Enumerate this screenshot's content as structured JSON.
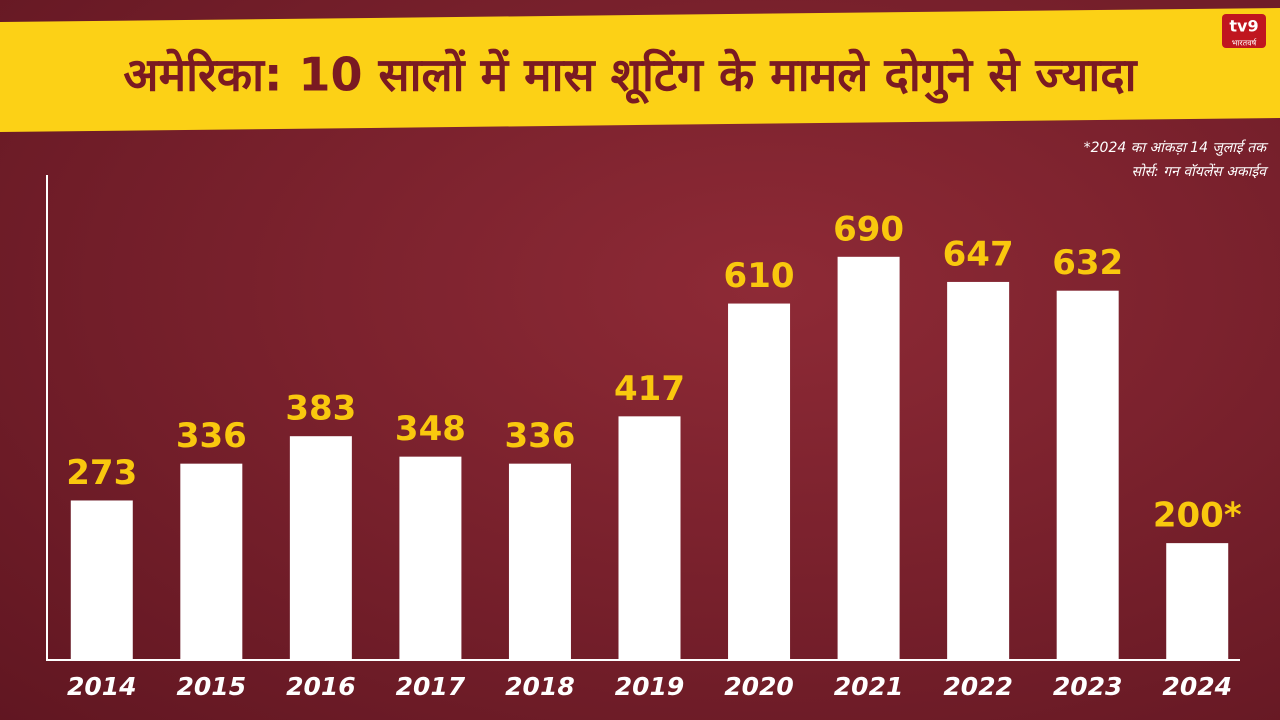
{
  "chart_data": {
    "type": "bar",
    "title": "अमेरिका: 10 सालों में मास शूटिंग के मामले दोगुने से ज्यादा",
    "notes": [
      "*2024 का आंकड़ा 14 जुलाई तक",
      "सोर्स: गन  वॉयलेंस अकाईव"
    ],
    "logo": [
      "tv9",
      "भारतवर्ष"
    ],
    "categories": [
      "2014",
      "2015",
      "2016",
      "2017",
      "2018",
      "2019",
      "2020",
      "2021",
      "2022",
      "2023",
      "2024"
    ],
    "values": [
      273,
      336,
      383,
      348,
      336,
      417,
      610,
      690,
      647,
      632,
      200
    ],
    "value_labels": [
      "273",
      "336",
      "383",
      "348",
      "336",
      "417",
      "610",
      "690",
      "647",
      "632",
      "200*"
    ],
    "color": "#ffffff",
    "label_color": "#f9c80e",
    "ylim": [
      0,
      830
    ]
  }
}
